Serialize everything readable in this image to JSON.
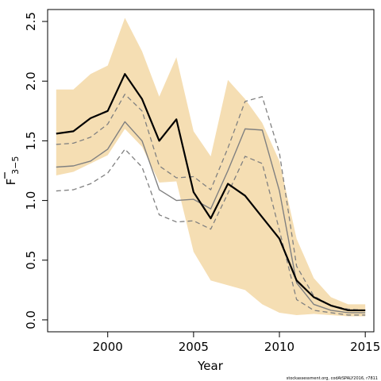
{
  "chart_data": {
    "type": "line",
    "xlabel": "Year",
    "ylabel_main": "F",
    "ylabel_sub": "3−5",
    "footnote": "stockassessment.org, codAtSPALY2016, r7811",
    "xlim": [
      1996.5,
      2015.5
    ],
    "ylim": [
      -0.1,
      2.6
    ],
    "x_ticks": [
      2000,
      2005,
      2010,
      2015
    ],
    "y_ticks": [
      0.0,
      0.5,
      1.0,
      1.5,
      2.0,
      2.5
    ],
    "y_tick_labels": [
      "0.0",
      "0.5",
      "1.0",
      "1.5",
      "2.0",
      "2.5"
    ],
    "colors": {
      "band": "#f5deb3",
      "estimate": "#000000",
      "previous": "#808080"
    },
    "x": [
      1997,
      1998,
      1999,
      2000,
      2001,
      2002,
      2003,
      2004,
      2005,
      2006,
      2007,
      2008,
      2009,
      2010,
      2011,
      2012,
      2013,
      2014,
      2015
    ],
    "band_upper": [
      1.93,
      1.93,
      2.06,
      2.13,
      2.53,
      2.25,
      1.87,
      2.2,
      1.58,
      1.37,
      2.01,
      1.85,
      1.65,
      1.33,
      0.68,
      0.35,
      0.19,
      0.13,
      0.13
    ],
    "band_lower": [
      1.21,
      1.24,
      1.31,
      1.38,
      1.6,
      1.45,
      1.15,
      1.16,
      0.57,
      0.33,
      0.29,
      0.25,
      0.13,
      0.06,
      0.04,
      0.05,
      0.04,
      0.03,
      0.03
    ],
    "series": [
      {
        "values": [
          1.56,
          1.58,
          1.69,
          1.75,
          2.06,
          1.85,
          1.5,
          1.68,
          1.07,
          0.85,
          1.14,
          1.04,
          0.86,
          0.68,
          0.33,
          0.19,
          0.12,
          0.08,
          0.08
        ]
      },
      {
        "values": [
          1.28,
          1.29,
          1.33,
          1.43,
          1.66,
          1.5,
          1.09,
          1.0,
          1.01,
          0.93,
          1.25,
          1.6,
          1.59,
          1.08,
          0.31,
          0.13,
          0.08,
          0.06,
          0.06
        ]
      },
      {
        "values": [
          1.47,
          1.48,
          1.53,
          1.64,
          1.89,
          1.75,
          1.29,
          1.19,
          1.2,
          1.09,
          1.44,
          1.83,
          1.87,
          1.4,
          0.45,
          0.2,
          0.12,
          0.09,
          0.08
        ]
      },
      {
        "values": [
          1.08,
          1.09,
          1.14,
          1.23,
          1.43,
          1.28,
          0.88,
          0.82,
          0.83,
          0.76,
          1.06,
          1.37,
          1.31,
          0.75,
          0.17,
          0.08,
          0.06,
          0.04,
          0.04
        ]
      }
    ]
  }
}
